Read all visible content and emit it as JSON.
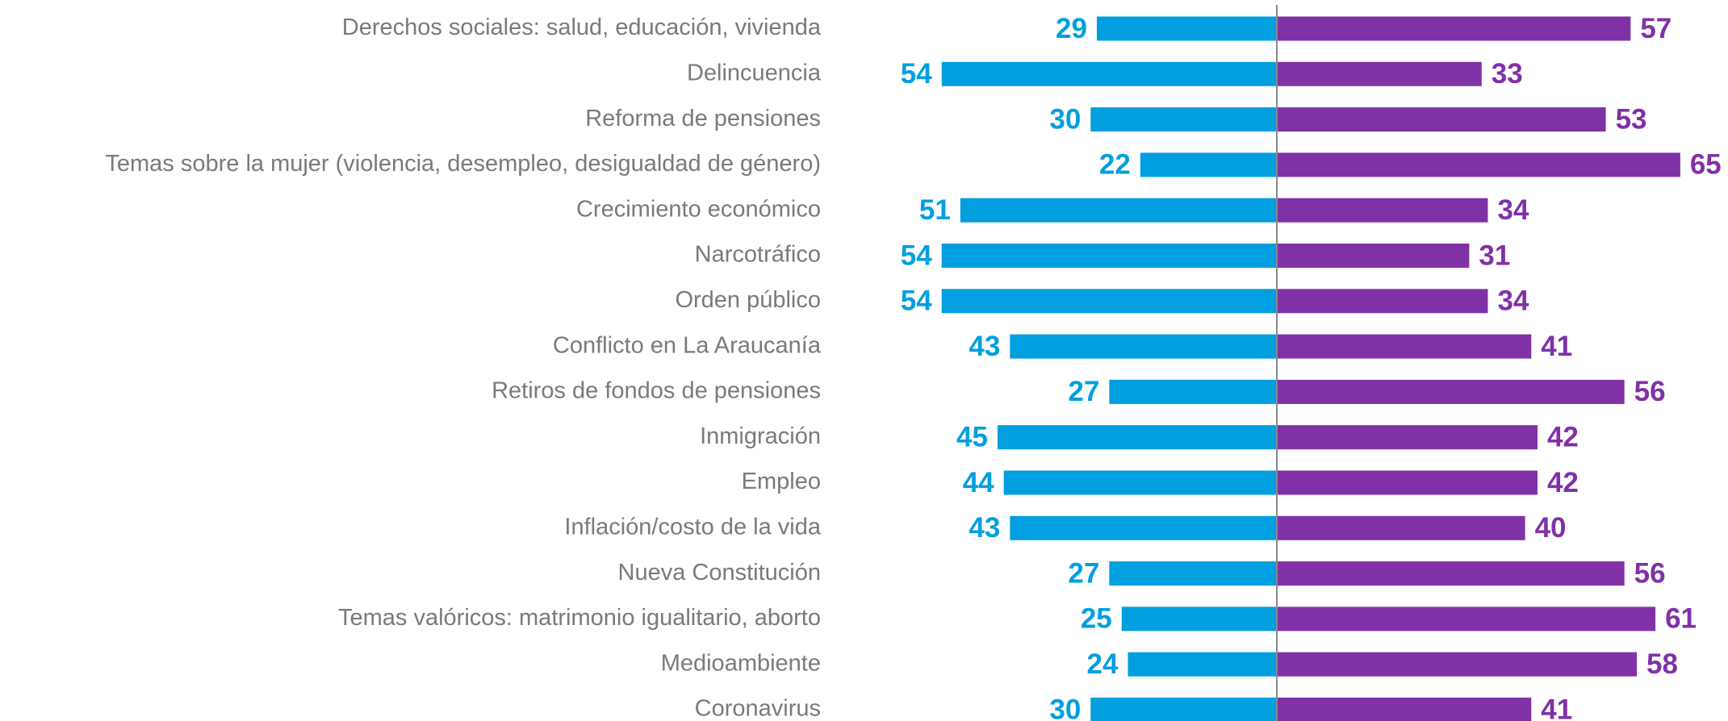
{
  "chart_data": {
    "type": "diverging_bar",
    "categories": [
      "Derechos sociales: salud, educación, vivienda",
      "Delincuencia",
      "Reforma de pensiones",
      "Temas sobre la mujer (violencia, desempleo, desigualdad de género)",
      "Crecimiento económico",
      "Narcotráfico",
      "Orden público",
      "Conflicto en La Araucanía",
      "Retiros de fondos de pensiones",
      "Inmigración",
      "Empleo",
      "Inflación/costo de la vida",
      "Nueva Constitución",
      "Temas valóricos: matrimonio igualitario, aborto",
      "Medioambiente",
      "Coronavirus"
    ],
    "series": [
      {
        "color": "#009fdf",
        "side": "left",
        "values": [
          29,
          54,
          30,
          22,
          51,
          54,
          54,
          43,
          27,
          45,
          44,
          43,
          27,
          25,
          24,
          30
        ]
      },
      {
        "color": "#8031a7",
        "side": "right",
        "values": [
          57,
          33,
          53,
          65,
          34,
          31,
          34,
          41,
          56,
          42,
          42,
          40,
          56,
          61,
          58,
          41
        ]
      }
    ]
  }
}
